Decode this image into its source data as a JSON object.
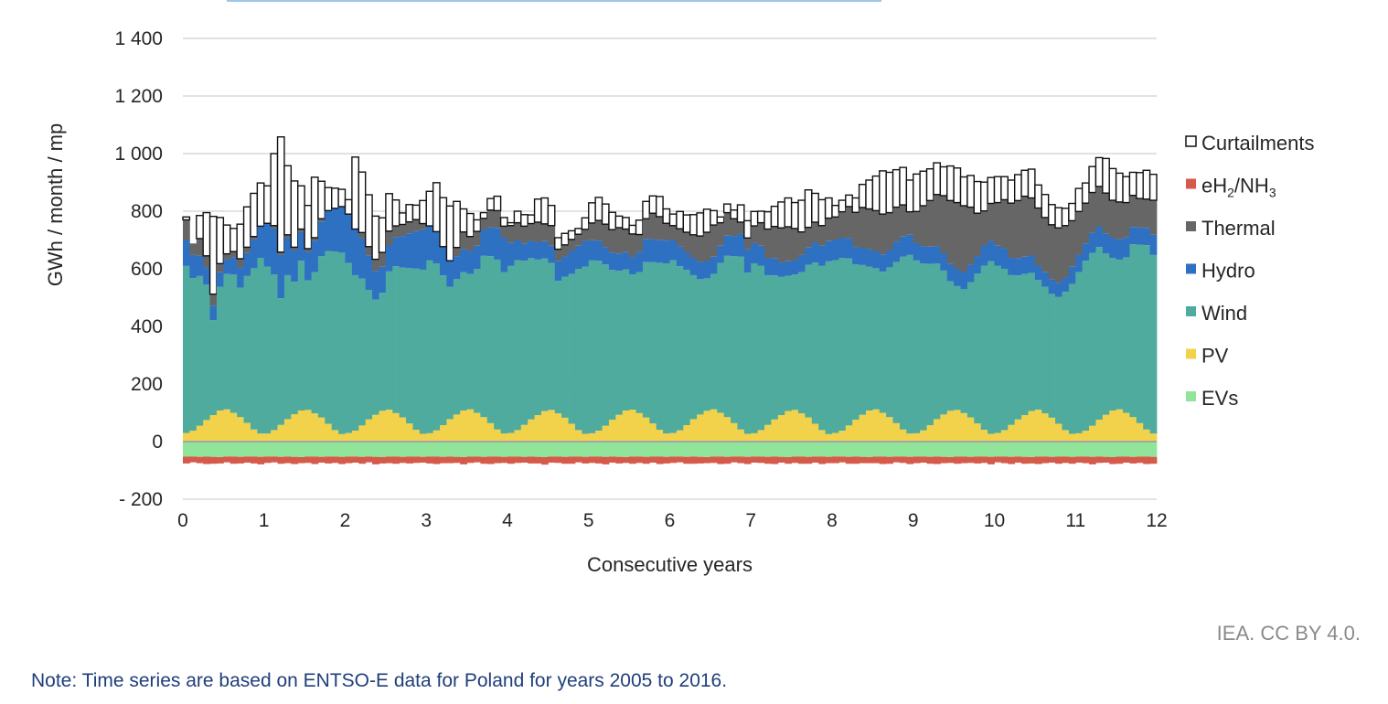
{
  "credit": "IEA. CC BY 4.0.",
  "note": "Note: Time series are based on ENTSO-E data for Poland for years 2005 to 2016.",
  "chart_data": {
    "type": "bar",
    "stacked": true,
    "x_unit": "month",
    "title": "",
    "xlabel": "Consecutive years",
    "ylabel": "GWh / month / mp",
    "xlim": [
      0,
      12
    ],
    "ylim": [
      -200,
      1400
    ],
    "x_ticks": [
      "0",
      "1",
      "2",
      "3",
      "4",
      "5",
      "6",
      "7",
      "8",
      "9",
      "10",
      "11",
      "12"
    ],
    "y_ticks": [
      "1 400",
      "1 200",
      "1 000",
      "800",
      "600",
      "400",
      "200",
      "0",
      "- 200"
    ],
    "y_tick_values": [
      1400,
      1200,
      1000,
      800,
      600,
      400,
      200,
      0,
      -200
    ],
    "grid": true,
    "legend_position": "right",
    "legend": [
      {
        "name": "Curtailments",
        "sub": "",
        "tail": "",
        "color": "#ffffff",
        "outline": true
      },
      {
        "name": "eH",
        "sub": "2",
        "tail": "/NH",
        "sub2": "3",
        "color": "#d65a4a"
      },
      {
        "name": "Thermal",
        "color": "#666666"
      },
      {
        "name": "Hydro",
        "color": "#2e70c2"
      },
      {
        "name": "Wind",
        "color": "#4fab9e"
      },
      {
        "name": "PV",
        "color": "#f2d24b"
      },
      {
        "name": "EVs",
        "color": "#90e59b"
      }
    ],
    "series": [
      {
        "name": "EVs",
        "color": "#90e59b",
        "values": [
          -52,
          -52,
          -53,
          -52,
          -53,
          -54,
          -52,
          -52,
          -53,
          -52,
          -52,
          -53,
          -52,
          -52,
          -53,
          -52,
          -53,
          -54,
          -52,
          -52,
          -53,
          -52,
          -52,
          -53,
          -52,
          -52,
          -53,
          -52,
          -53,
          -54,
          -52,
          -52,
          -53,
          -52,
          -52,
          -53,
          -52,
          -52,
          -53,
          -52,
          -53,
          -54,
          -52,
          -52,
          -53,
          -52,
          -52,
          -53,
          -52,
          -52,
          -53,
          -52,
          -53,
          -54,
          -52,
          -52,
          -53,
          -52,
          -52,
          -53,
          -52,
          -52,
          -53,
          -52,
          -53,
          -54,
          -52,
          -52,
          -53,
          -52,
          -52,
          -53,
          -52,
          -52,
          -53,
          -52,
          -53,
          -54,
          -52,
          -52,
          -53,
          -52,
          -52,
          -53,
          -52,
          -52,
          -53,
          -52,
          -53,
          -54,
          -52,
          -52,
          -53,
          -52,
          -52,
          -53,
          -52,
          -52,
          -53,
          -52,
          -53,
          -54,
          -52,
          -52,
          -53,
          -52,
          -52,
          -53,
          -52,
          -52,
          -53,
          -52,
          -53,
          -54,
          -52,
          -52,
          -53,
          -52,
          -52,
          -53,
          -52,
          -52,
          -53,
          -52,
          -53,
          -54,
          -52,
          -52,
          -53,
          -52,
          -52,
          -53,
          -52,
          -52,
          -53,
          -52,
          -53,
          -54,
          -52,
          -52,
          -53,
          -52,
          -52,
          -53
        ]
      },
      {
        "name": "eH2/NH3",
        "color": "#d65a4a",
        "values": [
          -24,
          -20,
          -22,
          -26,
          -24,
          -22,
          -20,
          -25,
          -23,
          -21,
          -24,
          -26,
          -22,
          -20,
          -24,
          -23,
          -25,
          -21,
          -22,
          -26,
          -20,
          -24,
          -22,
          -25,
          -23,
          -21,
          -24,
          -20,
          -26,
          -22,
          -23,
          -25,
          -21,
          -24,
          -22,
          -20,
          -24,
          -26,
          -22,
          -23,
          -21,
          -25,
          -22,
          -20,
          -24,
          -26,
          -23,
          -21,
          -25,
          -22,
          -20,
          -24,
          -23,
          -26,
          -21,
          -22,
          -24,
          -25,
          -20,
          -23,
          -22,
          -24,
          -26,
          -21,
          -23,
          -20,
          -25,
          -22,
          -24,
          -21,
          -26,
          -23,
          -22,
          -20,
          -24,
          -25,
          -23,
          -21,
          -22,
          -26,
          -24,
          -20,
          -23,
          -25,
          -21,
          -22,
          -24,
          -26,
          -20,
          -23,
          -22,
          -25,
          -24,
          -21,
          -26,
          -22,
          -23,
          -20,
          -24,
          -25,
          -22,
          -21,
          -23,
          -26,
          -24,
          -20,
          -22,
          -25,
          -23,
          -21,
          -24,
          -26,
          -22,
          -20,
          -25,
          -23,
          -21,
          -24,
          -22,
          -26,
          -20,
          -23,
          -25,
          -21,
          -24,
          -22,
          -26,
          -23,
          -20,
          -25,
          -22,
          -24,
          -21,
          -23,
          -26,
          -22,
          -20,
          -24,
          -25,
          -21,
          -23,
          -22,
          -26,
          -24
        ]
      },
      {
        "name": "PV",
        "color": "#f2d24b",
        "values": [
          30,
          38,
          55,
          75,
          92,
          108,
          112,
          100,
          85,
          65,
          42,
          28,
          28,
          40,
          58,
          78,
          95,
          108,
          110,
          98,
          84,
          62,
          40,
          26,
          30,
          38,
          56,
          77,
          93,
          107,
          111,
          99,
          84,
          63,
          41,
          27,
          29,
          39,
          57,
          78,
          94,
          108,
          112,
          100,
          85,
          64,
          42,
          28,
          30,
          40,
          58,
          77,
          92,
          106,
          110,
          98,
          83,
          62,
          40,
          27,
          29,
          38,
          55,
          76,
          93,
          108,
          111,
          99,
          84,
          63,
          41,
          28,
          30,
          39,
          57,
          78,
          94,
          107,
          112,
          100,
          85,
          64,
          42,
          27,
          29,
          40,
          58,
          77,
          92,
          106,
          110,
          98,
          84,
          62,
          40,
          26,
          30,
          38,
          56,
          76,
          93,
          108,
          112,
          100,
          85,
          64,
          42,
          28,
          29,
          39,
          57,
          78,
          94,
          107,
          110,
          99,
          84,
          63,
          41,
          27,
          30,
          40,
          58,
          77,
          92,
          106,
          111,
          98,
          83,
          62,
          40,
          27,
          29,
          38,
          55,
          76,
          93,
          108,
          112,
          100,
          85,
          64,
          42,
          28
        ]
      },
      {
        "name": "Wind",
        "color": "#4fab9e",
        "values": [
          580,
          530,
          520,
          470,
          330,
          430,
          470,
          480,
          450,
          510,
          560,
          610,
          580,
          540,
          440,
          500,
          460,
          520,
          450,
          490,
          560,
          600,
          620,
          630,
          590,
          540,
          510,
          450,
          400,
          410,
          480,
          510,
          520,
          540,
          560,
          570,
          600,
          580,
          520,
          460,
          470,
          480,
          470,
          500,
          560,
          580,
          590,
          560,
          580,
          590,
          570,
          560,
          540,
          530,
          510,
          460,
          490,
          520,
          560,
          580,
          600,
          590,
          560,
          520,
          500,
          490,
          470,
          490,
          540,
          560,
          580,
          590,
          600,
          570,
          540,
          500,
          470,
          460,
          470,
          520,
          560,
          580,
          600,
          560,
          590,
          570,
          520,
          500,
          480,
          470,
          470,
          490,
          530,
          560,
          570,
          600,
          600,
          600,
          580,
          540,
          520,
          500,
          490,
          490,
          520,
          560,
          600,
          620,
          600,
          580,
          560,
          540,
          500,
          450,
          430,
          430,
          470,
          520,
          570,
          600,
          580,
          560,
          520,
          500,
          490,
          480,
          450,
          440,
          430,
          440,
          480,
          520,
          560,
          590,
          600,
          600,
          560,
          530,
          520,
          540,
          600,
          620,
          640,
          620
        ]
      },
      {
        "name": "Hydro",
        "color": "#2e70c2",
        "values": [
          90,
          80,
          70,
          60,
          50,
          50,
          50,
          60,
          70,
          80,
          100,
          110,
          150,
          160,
          150,
          130,
          110,
          100,
          100,
          110,
          120,
          140,
          150,
          160,
          170,
          160,
          140,
          120,
          100,
          90,
          90,
          100,
          110,
          120,
          130,
          140,
          120,
          110,
          100,
          90,
          80,
          80,
          80,
          80,
          90,
          100,
          110,
          120,
          80,
          70,
          60,
          60,
          60,
          60,
          60,
          70,
          70,
          80,
          80,
          90,
          70,
          70,
          60,
          60,
          60,
          60,
          60,
          70,
          80,
          80,
          80,
          80,
          70,
          70,
          60,
          60,
          60,
          60,
          60,
          60,
          70,
          70,
          80,
          80,
          70,
          70,
          60,
          60,
          50,
          50,
          50,
          60,
          60,
          70,
          70,
          70,
          70,
          70,
          70,
          60,
          60,
          60,
          60,
          60,
          60,
          70,
          70,
          70,
          60,
          60,
          60,
          60,
          60,
          60,
          60,
          60,
          60,
          60,
          70,
          70,
          70,
          70,
          60,
          60,
          60,
          60,
          50,
          50,
          50,
          50,
          50,
          60,
          60,
          60,
          70,
          70,
          70,
          70,
          70,
          70,
          60,
          60,
          60,
          70
        ]
      },
      {
        "name": "Thermal",
        "color": "#666666",
        "values": [
          70,
          40,
          60,
          40,
          40,
          30,
          20,
          20,
          30,
          20,
          10,
          0,
          0,
          10,
          10,
          10,
          10,
          10,
          10,
          10,
          10,
          0,
          0,
          0,
          0,
          0,
          20,
          30,
          40,
          50,
          50,
          40,
          40,
          40,
          40,
          20,
          0,
          0,
          0,
          0,
          30,
          60,
          50,
          50,
          40,
          60,
          60,
          40,
          60,
          60,
          60,
          60,
          70,
          60,
          70,
          40,
          40,
          40,
          40,
          40,
          60,
          70,
          80,
          80,
          90,
          80,
          80,
          60,
          70,
          90,
          80,
          60,
          50,
          60,
          70,
          80,
          90,
          100,
          110,
          80,
          80,
          60,
          40,
          40,
          60,
          80,
          100,
          110,
          120,
          120,
          110,
          80,
          70,
          70,
          70,
          80,
          80,
          90,
          110,
          120,
          140,
          140,
          140,
          140,
          130,
          120,
          110,
          80,
          110,
          140,
          160,
          180,
          200,
          220,
          230,
          230,
          200,
          150,
          120,
          130,
          150,
          170,
          190,
          200,
          210,
          200,
          200,
          190,
          190,
          190,
          180,
          160,
          150,
          140,
          140,
          140,
          140,
          130,
          130,
          120,
          110,
          100,
          100,
          120
        ]
      },
      {
        "name": "Curtailments",
        "color": "#ffffff",
        "values": [
          10,
          0,
          80,
          150,
          270,
          160,
          100,
          80,
          120,
          140,
          150,
          150,
          130,
          250,
          400,
          240,
          230,
          150,
          150,
          210,
          130,
          80,
          70,
          60,
          50,
          250,
          210,
          180,
          150,
          120,
          130,
          90,
          40,
          60,
          50,
          80,
          120,
          170,
          170,
          190,
          160,
          80,
          80,
          40,
          20,
          40,
          50,
          30,
          10,
          40,
          40,
          30,
          80,
          90,
          70,
          40,
          40,
          30,
          20,
          40,
          70,
          80,
          70,
          60,
          40,
          40,
          30,
          50,
          60,
          60,
          70,
          50,
          40,
          60,
          60,
          70,
          80,
          80,
          50,
          20,
          30,
          30,
          60,
          60,
          50,
          40,
          60,
          70,
          90,
          100,
          90,
          110,
          130,
          100,
          90,
          70,
          40,
          40,
          40,
          50,
          80,
          100,
          120,
          150,
          140,
          130,
          130,
          110,
          130,
          120,
          110,
          110,
          100,
          120,
          120,
          100,
          110,
          110,
          100,
          90,
          90,
          80,
          80,
          90,
          90,
          100,
          80,
          80,
          70,
          70,
          60,
          60,
          80,
          70,
          90,
          100,
          120,
          110,
          100,
          90,
          80,
          90,
          100,
          90
        ]
      }
    ]
  }
}
